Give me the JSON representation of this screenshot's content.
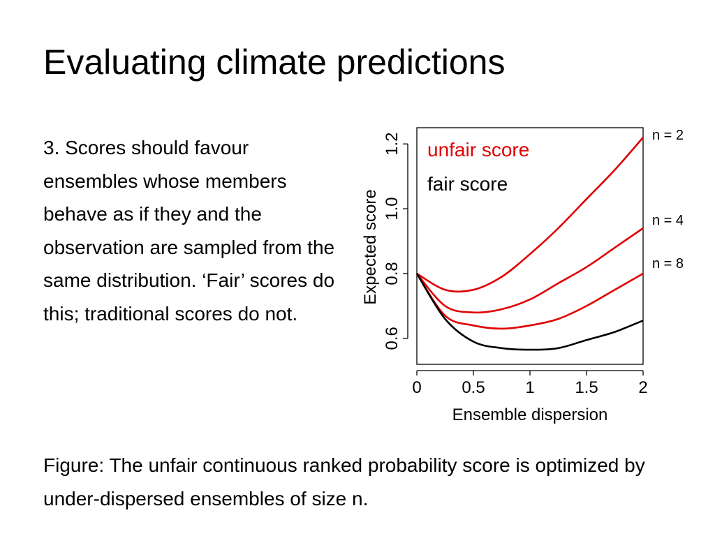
{
  "slide": {
    "title": "Evaluating climate predictions",
    "body": "3. Scores should favour ensembles whose members behave as if they and the observation are sampled from the same distribution. ‘Fair’ scores do this; traditional scores do not.",
    "caption": "Figure: The unfair continuous ranked probability score is optimized by under-dispersed ensembles of size n."
  },
  "chart_data": {
    "type": "line",
    "xlabel": "Ensemble dispersion",
    "ylabel": "Expected score",
    "xlim": [
      0,
      2
    ],
    "ylim": [
      0.52,
      1.25
    ],
    "x_ticks": [
      "0",
      "0.5",
      "1",
      "1.5",
      "2"
    ],
    "y_ticks": [
      "0.6",
      "0.8",
      "1.0",
      "1.2"
    ],
    "legend": {
      "position": "top-left",
      "entries": [
        {
          "label": "unfair score",
          "color": "#e00000"
        },
        {
          "label": "fair score",
          "color": "#000000"
        }
      ]
    },
    "series": [
      {
        "name": "n = 2",
        "kind": "unfair",
        "color": "#e00000",
        "x": [
          0,
          0.25,
          0.5,
          0.75,
          1.0,
          1.25,
          1.5,
          1.75,
          2.0
        ],
        "y": [
          0.8,
          0.75,
          0.75,
          0.79,
          0.86,
          0.94,
          1.03,
          1.12,
          1.22
        ]
      },
      {
        "name": "n = 4",
        "kind": "unfair",
        "color": "#e00000",
        "x": [
          0,
          0.25,
          0.5,
          0.75,
          1.0,
          1.25,
          1.5,
          1.75,
          2.0
        ],
        "y": [
          0.8,
          0.7,
          0.68,
          0.69,
          0.72,
          0.77,
          0.82,
          0.88,
          0.94
        ]
      },
      {
        "name": "n = 8",
        "kind": "unfair",
        "color": "#e00000",
        "x": [
          0,
          0.25,
          0.5,
          0.75,
          1.0,
          1.25,
          1.5,
          1.75,
          2.0
        ],
        "y": [
          0.8,
          0.67,
          0.64,
          0.63,
          0.64,
          0.66,
          0.7,
          0.75,
          0.8
        ]
      },
      {
        "name": "fair",
        "kind": "fair",
        "color": "#000000",
        "x": [
          0,
          0.25,
          0.5,
          0.75,
          1.0,
          1.25,
          1.5,
          1.75,
          2.0
        ],
        "y": [
          0.8,
          0.66,
          0.59,
          0.57,
          0.565,
          0.57,
          0.595,
          0.62,
          0.655
        ]
      }
    ],
    "annotations": [
      "n = 2",
      "n = 4",
      "n = 8"
    ]
  }
}
